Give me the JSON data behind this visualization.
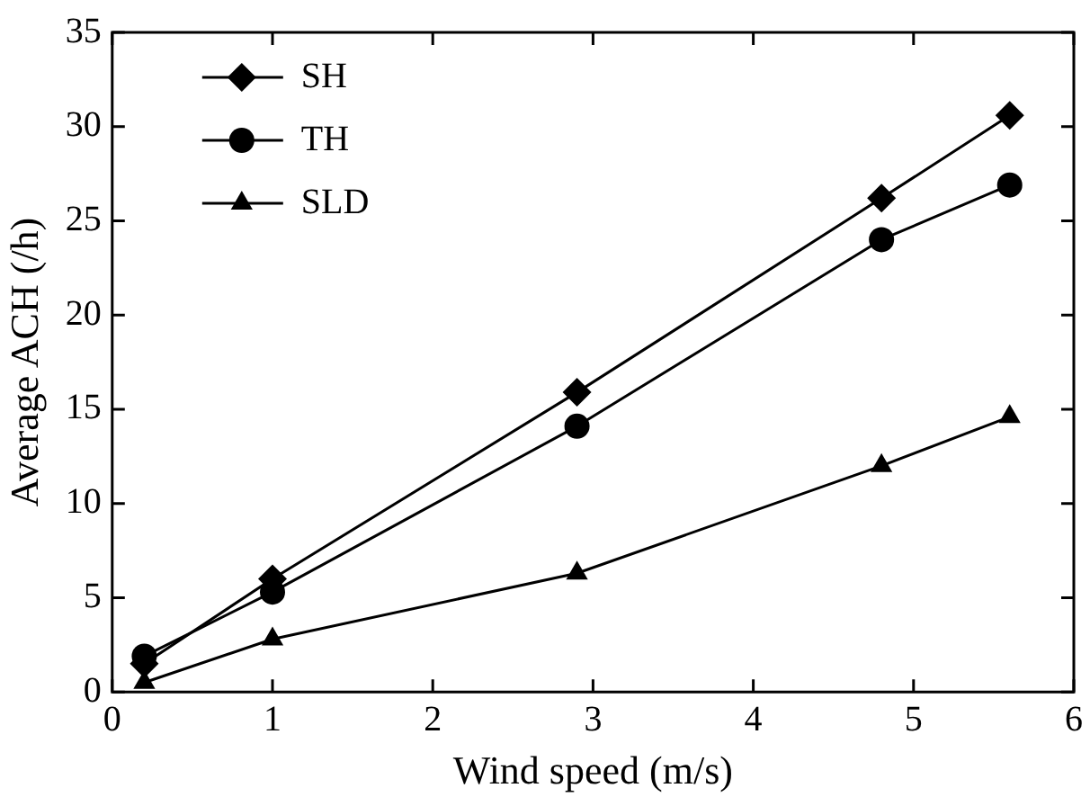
{
  "chart_data": {
    "type": "line",
    "xlabel": "Wind speed (m/s)",
    "ylabel": "Average ACH (/h)",
    "x": [
      0.2,
      1,
      2.9,
      4.8,
      5.6
    ],
    "series": [
      {
        "name": "SH",
        "color": "#000000",
        "marker": "diamond",
        "values": [
          1.5,
          6.0,
          15.9,
          26.2,
          30.6
        ]
      },
      {
        "name": "TH",
        "color": "#000000",
        "marker": "circle",
        "values": [
          1.9,
          5.3,
          14.1,
          24.0,
          26.9
        ]
      },
      {
        "name": "SLD",
        "color": "#000000",
        "marker": "triangle",
        "values": [
          0.5,
          2.8,
          6.3,
          12.0,
          14.6
        ]
      }
    ],
    "xlim": [
      0,
      6
    ],
    "xticks": [
      0,
      1,
      2,
      3,
      4,
      5,
      6
    ],
    "ylim": [
      0,
      35
    ],
    "yticks": [
      0,
      5,
      10,
      15,
      20,
      25,
      30,
      35
    ],
    "grid": false,
    "legend": "top left",
    "line_style": "solid"
  }
}
